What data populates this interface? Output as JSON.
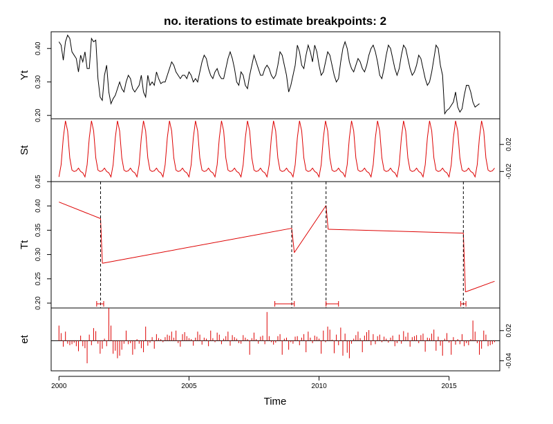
{
  "chart_data": {
    "type": "line",
    "title": "no. iterations to estimate breakpoints: 2",
    "xlabel": "Time",
    "xlim": [
      1999.7,
      2016.95
    ],
    "x_ticks": [
      2000,
      2005,
      2010,
      2015
    ],
    "x_tick_labels": [
      "2000",
      "2005",
      "2010",
      "2015"
    ],
    "colors": {
      "observed": "#000000",
      "component": "#dd0000",
      "breakpoint": "#000000"
    },
    "panels": [
      {
        "key": "Yt",
        "ylabel": "Yt",
        "axis_side": "left",
        "ylim": [
          0.19,
          0.45
        ],
        "y_ticks": [
          0.2,
          0.3,
          0.4
        ],
        "y_tick_labels": [
          "0.20",
          "0.30",
          "0.40"
        ],
        "series": [
          {
            "x0": 2000.0,
            "dx": 0.0833333,
            "values": [
              0.42,
              0.41,
              0.365,
              0.42,
              0.44,
              0.43,
              0.39,
              0.38,
              0.37,
              0.33,
              0.38,
              0.36,
              0.39,
              0.34,
              0.34,
              0.43,
              0.42,
              0.425,
              0.31,
              0.255,
              0.245,
              0.32,
              0.35,
              0.27,
              0.235,
              0.25,
              0.26,
              0.28,
              0.3,
              0.28,
              0.27,
              0.3,
              0.32,
              0.31,
              0.28,
              0.27,
              0.28,
              0.29,
              0.32,
              0.27,
              0.255,
              0.32,
              0.29,
              0.3,
              0.29,
              0.33,
              0.31,
              0.295,
              0.3,
              0.3,
              0.32,
              0.34,
              0.36,
              0.35,
              0.33,
              0.32,
              0.31,
              0.32,
              0.32,
              0.31,
              0.33,
              0.32,
              0.3,
              0.31,
              0.3,
              0.33,
              0.36,
              0.38,
              0.37,
              0.34,
              0.32,
              0.31,
              0.33,
              0.34,
              0.32,
              0.31,
              0.31,
              0.34,
              0.37,
              0.39,
              0.37,
              0.34,
              0.3,
              0.29,
              0.33,
              0.32,
              0.29,
              0.28,
              0.32,
              0.35,
              0.38,
              0.36,
              0.34,
              0.32,
              0.32,
              0.34,
              0.35,
              0.34,
              0.32,
              0.31,
              0.32,
              0.35,
              0.39,
              0.38,
              0.35,
              0.32,
              0.27,
              0.29,
              0.32,
              0.35,
              0.41,
              0.39,
              0.35,
              0.34,
              0.38,
              0.41,
              0.39,
              0.36,
              0.41,
              0.39,
              0.35,
              0.32,
              0.33,
              0.36,
              0.39,
              0.38,
              0.35,
              0.32,
              0.3,
              0.31,
              0.36,
              0.4,
              0.42,
              0.4,
              0.36,
              0.34,
              0.33,
              0.35,
              0.37,
              0.36,
              0.34,
              0.33,
              0.35,
              0.38,
              0.4,
              0.41,
              0.39,
              0.36,
              0.32,
              0.31,
              0.34,
              0.38,
              0.41,
              0.4,
              0.37,
              0.34,
              0.32,
              0.34,
              0.38,
              0.41,
              0.4,
              0.37,
              0.34,
              0.32,
              0.33,
              0.35,
              0.38,
              0.37,
              0.34,
              0.31,
              0.29,
              0.3,
              0.33,
              0.37,
              0.41,
              0.4,
              0.35,
              0.32,
              0.205,
              0.215,
              0.22,
              0.23,
              0.24,
              0.27,
              0.225,
              0.21,
              0.22,
              0.26,
              0.29,
              0.29,
              0.27,
              0.24,
              0.225,
              0.23,
              0.235
            ]
          }
        ]
      },
      {
        "key": "St",
        "ylabel": "St",
        "axis_side": "right",
        "ylim": [
          -0.035,
          0.058
        ],
        "y_ticks": [
          -0.02,
          0.02
        ],
        "y_tick_labels": [
          "-0.02",
          "0.02"
        ],
        "seasonal_profile": [
          -0.028,
          -0.01,
          0.03,
          0.055,
          0.04,
          0.0,
          -0.018,
          -0.02,
          -0.019,
          -0.015,
          -0.02,
          -0.022
        ],
        "series": [
          {
            "x0": 2000.0,
            "dx": 0.0833333,
            "months": 202
          }
        ]
      },
      {
        "key": "Tt",
        "ylabel": "Tt",
        "axis_side": "left",
        "ylim": [
          0.19,
          0.45
        ],
        "y_ticks": [
          0.2,
          0.25,
          0.3,
          0.35,
          0.4,
          0.45
        ],
        "y_tick_labels": [
          "0.20",
          "0.25",
          "0.30",
          "0.35",
          "0.40",
          "0.45"
        ],
        "segments": [
          {
            "x": [
              2000.0,
              2001.6
            ],
            "y": [
              0.408,
              0.374
            ]
          },
          {
            "x": [
              2001.6,
              2001.67
            ],
            "y": [
              0.374,
              0.282
            ]
          },
          {
            "x": [
              2001.67,
              2008.95
            ],
            "y": [
              0.282,
              0.354
            ]
          },
          {
            "x": [
              2008.95,
              2009.05
            ],
            "y": [
              0.354,
              0.304
            ]
          },
          {
            "x": [
              2009.05,
              2010.27
            ],
            "y": [
              0.304,
              0.401
            ]
          },
          {
            "x": [
              2010.27,
              2010.35
            ],
            "y": [
              0.401,
              0.352
            ]
          },
          {
            "x": [
              2010.35,
              2015.55
            ],
            "y": [
              0.352,
              0.344
            ]
          },
          {
            "x": [
              2015.55,
              2015.63
            ],
            "y": [
              0.344,
              0.223
            ]
          },
          {
            "x": [
              2015.63,
              2016.75
            ],
            "y": [
              0.223,
              0.245
            ]
          }
        ],
        "breakpoints": [
          2001.6,
          2008.95,
          2010.27,
          2015.55
        ],
        "confidence_intervals": [
          [
            2001.45,
            2001.72
          ],
          [
            2008.3,
            2009.05
          ],
          [
            2010.27,
            2010.75
          ],
          [
            2015.45,
            2015.65
          ]
        ]
      },
      {
        "key": "et",
        "ylabel": "et",
        "axis_side": "right",
        "ylim": [
          -0.06,
          0.065
        ],
        "y_ticks": [
          -0.04,
          0.02
        ],
        "y_tick_labels": [
          "-0.04",
          "0.02"
        ],
        "series": [
          {
            "x0": 2000.0,
            "dx": 0.0833333,
            "values": [
              0.03,
              0.015,
              -0.012,
              0.018,
              -0.006,
              -0.009,
              -0.007,
              -0.004,
              -0.011,
              -0.021,
              0.01,
              -0.011,
              -0.015,
              -0.045,
              0.012,
              -0.009,
              0.025,
              0.019,
              -0.006,
              -0.026,
              -0.016,
              0.004,
              -0.011,
              0.065,
              0.03,
              -0.026,
              -0.02,
              -0.035,
              -0.03,
              -0.018,
              -0.006,
              0.02,
              -0.007,
              -0.005,
              -0.028,
              -0.017,
              0.003,
              -0.006,
              -0.015,
              -0.023,
              0.028,
              -0.01,
              -0.004,
              0.007,
              -0.016,
              0.013,
              0.005,
              0.003,
              -0.003,
              0.007,
              0.012,
              0.01,
              0.018,
              0.006,
              0.02,
              -0.005,
              -0.012,
              0.013,
              0.017,
              0.009,
              0.005,
              0.003,
              -0.01,
              0.006,
              0.018,
              0.012,
              -0.008,
              0.006,
              0.004,
              -0.011,
              0.02,
              0.005,
              -0.003,
              0.016,
              0.012,
              -0.007,
              0.004,
              0.009,
              0.018,
              -0.01,
              0.011,
              0.007,
              0.004,
              -0.005,
              -0.006,
              0.011,
              0.006,
              0.003,
              -0.028,
              0.005,
              0.016,
              0.003,
              -0.006,
              0.008,
              0.01,
              -0.007,
              0.057,
              0.009,
              -0.003,
              -0.008,
              -0.004,
              0.009,
              0.013,
              -0.028,
              0.004,
              0.006,
              -0.018,
              -0.003,
              -0.006,
              0.008,
              0.009,
              -0.009,
              0.006,
              0.013,
              -0.023,
              0.018,
              0.006,
              -0.005,
              0.01,
              0.008,
              0.004,
              -0.026,
              0.02,
              -0.003,
              0.028,
              0.022,
              0.002,
              -0.025,
              0.012,
              -0.009,
              0.026,
              -0.03,
              0.014,
              -0.024,
              -0.035,
              -0.006,
              0.004,
              0.011,
              0.018,
              0.005,
              -0.023,
              0.01,
              0.017,
              0.021,
              -0.009,
              0.013,
              -0.007,
              0.009,
              0.012,
              -0.003,
              0.008,
              0.004,
              -0.004,
              0.006,
              0.01,
              -0.011,
              -0.005,
              0.012,
              -0.006,
              0.019,
              0.008,
              0.016,
              -0.012,
              0.007,
              0.009,
              0.011,
              -0.005,
              0.011,
              0.014,
              -0.022,
              0.006,
              0.005,
              0.014,
              0.022,
              -0.02,
              0.008,
              -0.01,
              -0.03,
              0.004,
              0.015,
              -0.004,
              -0.028,
              0.007,
              -0.008,
              0.003,
              -0.007,
              0.013,
              -0.011,
              -0.005,
              -0.009,
              0.003,
              0.04,
              0.018,
              -0.005,
              -0.028,
              -0.016,
              0.02,
              0.012,
              -0.011,
              -0.009,
              -0.007,
              -0.003
            ]
          }
        ]
      }
    ]
  }
}
